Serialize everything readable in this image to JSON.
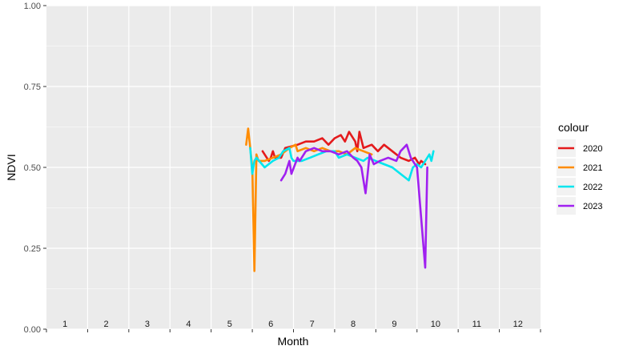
{
  "chart_data": {
    "type": "line",
    "xlabel": "Month",
    "ylabel": "NDVI",
    "xlim": [
      0,
      12
    ],
    "ylim": [
      0,
      1
    ],
    "yticks": [
      "0.00",
      "0.25",
      "0.50",
      "0.75",
      "1.00"
    ],
    "ytick_values": [
      0,
      0.25,
      0.5,
      0.75,
      1.0
    ],
    "month_labels": [
      "1",
      "2",
      "3",
      "4",
      "5",
      "6",
      "7",
      "8",
      "9",
      "10",
      "11",
      "12"
    ],
    "grid": true,
    "background": "#ebebeb",
    "legend": {
      "title": "colour",
      "position": "right"
    },
    "series": [
      {
        "name": "2020",
        "color": "#e41a1c",
        "points": [
          [
            5.25,
            0.55
          ],
          [
            5.4,
            0.52
          ],
          [
            5.45,
            0.53
          ],
          [
            5.5,
            0.55
          ],
          [
            5.55,
            0.53
          ],
          [
            5.7,
            0.53
          ],
          [
            5.8,
            0.56
          ],
          [
            6.1,
            0.57
          ],
          [
            6.3,
            0.58
          ],
          [
            6.5,
            0.58
          ],
          [
            6.7,
            0.59
          ],
          [
            6.85,
            0.57
          ],
          [
            7.0,
            0.59
          ],
          [
            7.15,
            0.6
          ],
          [
            7.25,
            0.58
          ],
          [
            7.35,
            0.61
          ],
          [
            7.5,
            0.58
          ],
          [
            7.55,
            0.55
          ],
          [
            7.6,
            0.61
          ],
          [
            7.7,
            0.56
          ],
          [
            7.9,
            0.57
          ],
          [
            8.05,
            0.55
          ],
          [
            8.2,
            0.57
          ],
          [
            8.4,
            0.55
          ],
          [
            8.6,
            0.53
          ],
          [
            8.8,
            0.52
          ],
          [
            8.95,
            0.53
          ],
          [
            9.05,
            0.51
          ],
          [
            9.1,
            0.52
          ],
          [
            9.2,
            0.51
          ]
        ]
      },
      {
        "name": "2021",
        "color": "#ff8c00",
        "points": [
          [
            4.85,
            0.57
          ],
          [
            4.9,
            0.62
          ],
          [
            4.95,
            0.56
          ],
          [
            5.0,
            0.5
          ],
          [
            5.05,
            0.18
          ],
          [
            5.1,
            0.54
          ],
          [
            5.15,
            0.52
          ],
          [
            5.3,
            0.52
          ],
          [
            5.5,
            0.53
          ],
          [
            5.7,
            0.54
          ],
          [
            5.9,
            0.56
          ],
          [
            6.05,
            0.57
          ],
          [
            6.1,
            0.55
          ],
          [
            6.3,
            0.56
          ],
          [
            6.5,
            0.55
          ],
          [
            6.7,
            0.56
          ],
          [
            6.9,
            0.55
          ],
          [
            7.1,
            0.55
          ],
          [
            7.3,
            0.54
          ],
          [
            7.5,
            0.56
          ],
          [
            7.7,
            0.55
          ],
          [
            7.9,
            0.54
          ]
        ]
      },
      {
        "name": "2022",
        "color": "#00e5ee",
        "points": [
          [
            4.95,
            0.56
          ],
          [
            5.0,
            0.48
          ],
          [
            5.05,
            0.52
          ],
          [
            5.1,
            0.53
          ],
          [
            5.3,
            0.5
          ],
          [
            5.5,
            0.52
          ],
          [
            5.65,
            0.53
          ],
          [
            5.75,
            0.55
          ],
          [
            5.9,
            0.56
          ],
          [
            5.95,
            0.53
          ],
          [
            6.0,
            0.52
          ],
          [
            6.2,
            0.52
          ],
          [
            6.4,
            0.53
          ],
          [
            6.6,
            0.54
          ],
          [
            6.8,
            0.55
          ],
          [
            7.0,
            0.55
          ],
          [
            7.1,
            0.53
          ],
          [
            7.3,
            0.54
          ],
          [
            7.5,
            0.53
          ],
          [
            7.7,
            0.52
          ],
          [
            7.8,
            0.53
          ],
          [
            8.0,
            0.52
          ],
          [
            8.2,
            0.51
          ],
          [
            8.4,
            0.5
          ],
          [
            8.6,
            0.48
          ],
          [
            8.8,
            0.46
          ],
          [
            8.9,
            0.5
          ],
          [
            9.0,
            0.51
          ],
          [
            9.1,
            0.5
          ],
          [
            9.2,
            0.52
          ],
          [
            9.3,
            0.54
          ],
          [
            9.35,
            0.52
          ],
          [
            9.4,
            0.55
          ]
        ]
      },
      {
        "name": "2023",
        "color": "#a020f0",
        "points": [
          [
            5.7,
            0.46
          ],
          [
            5.8,
            0.48
          ],
          [
            5.9,
            0.52
          ],
          [
            5.95,
            0.48
          ],
          [
            6.1,
            0.53
          ],
          [
            6.15,
            0.52
          ],
          [
            6.3,
            0.55
          ],
          [
            6.5,
            0.56
          ],
          [
            6.7,
            0.55
          ],
          [
            6.9,
            0.55
          ],
          [
            7.1,
            0.54
          ],
          [
            7.3,
            0.55
          ],
          [
            7.45,
            0.53
          ],
          [
            7.55,
            0.52
          ],
          [
            7.65,
            0.5
          ],
          [
            7.75,
            0.42
          ],
          [
            7.8,
            0.48
          ],
          [
            7.85,
            0.54
          ],
          [
            7.95,
            0.51
          ],
          [
            8.1,
            0.52
          ],
          [
            8.3,
            0.53
          ],
          [
            8.5,
            0.52
          ],
          [
            8.6,
            0.55
          ],
          [
            8.75,
            0.57
          ],
          [
            8.85,
            0.53
          ],
          [
            9.0,
            0.5
          ],
          [
            9.2,
            0.19
          ],
          [
            9.25,
            0.5
          ]
        ]
      }
    ]
  }
}
